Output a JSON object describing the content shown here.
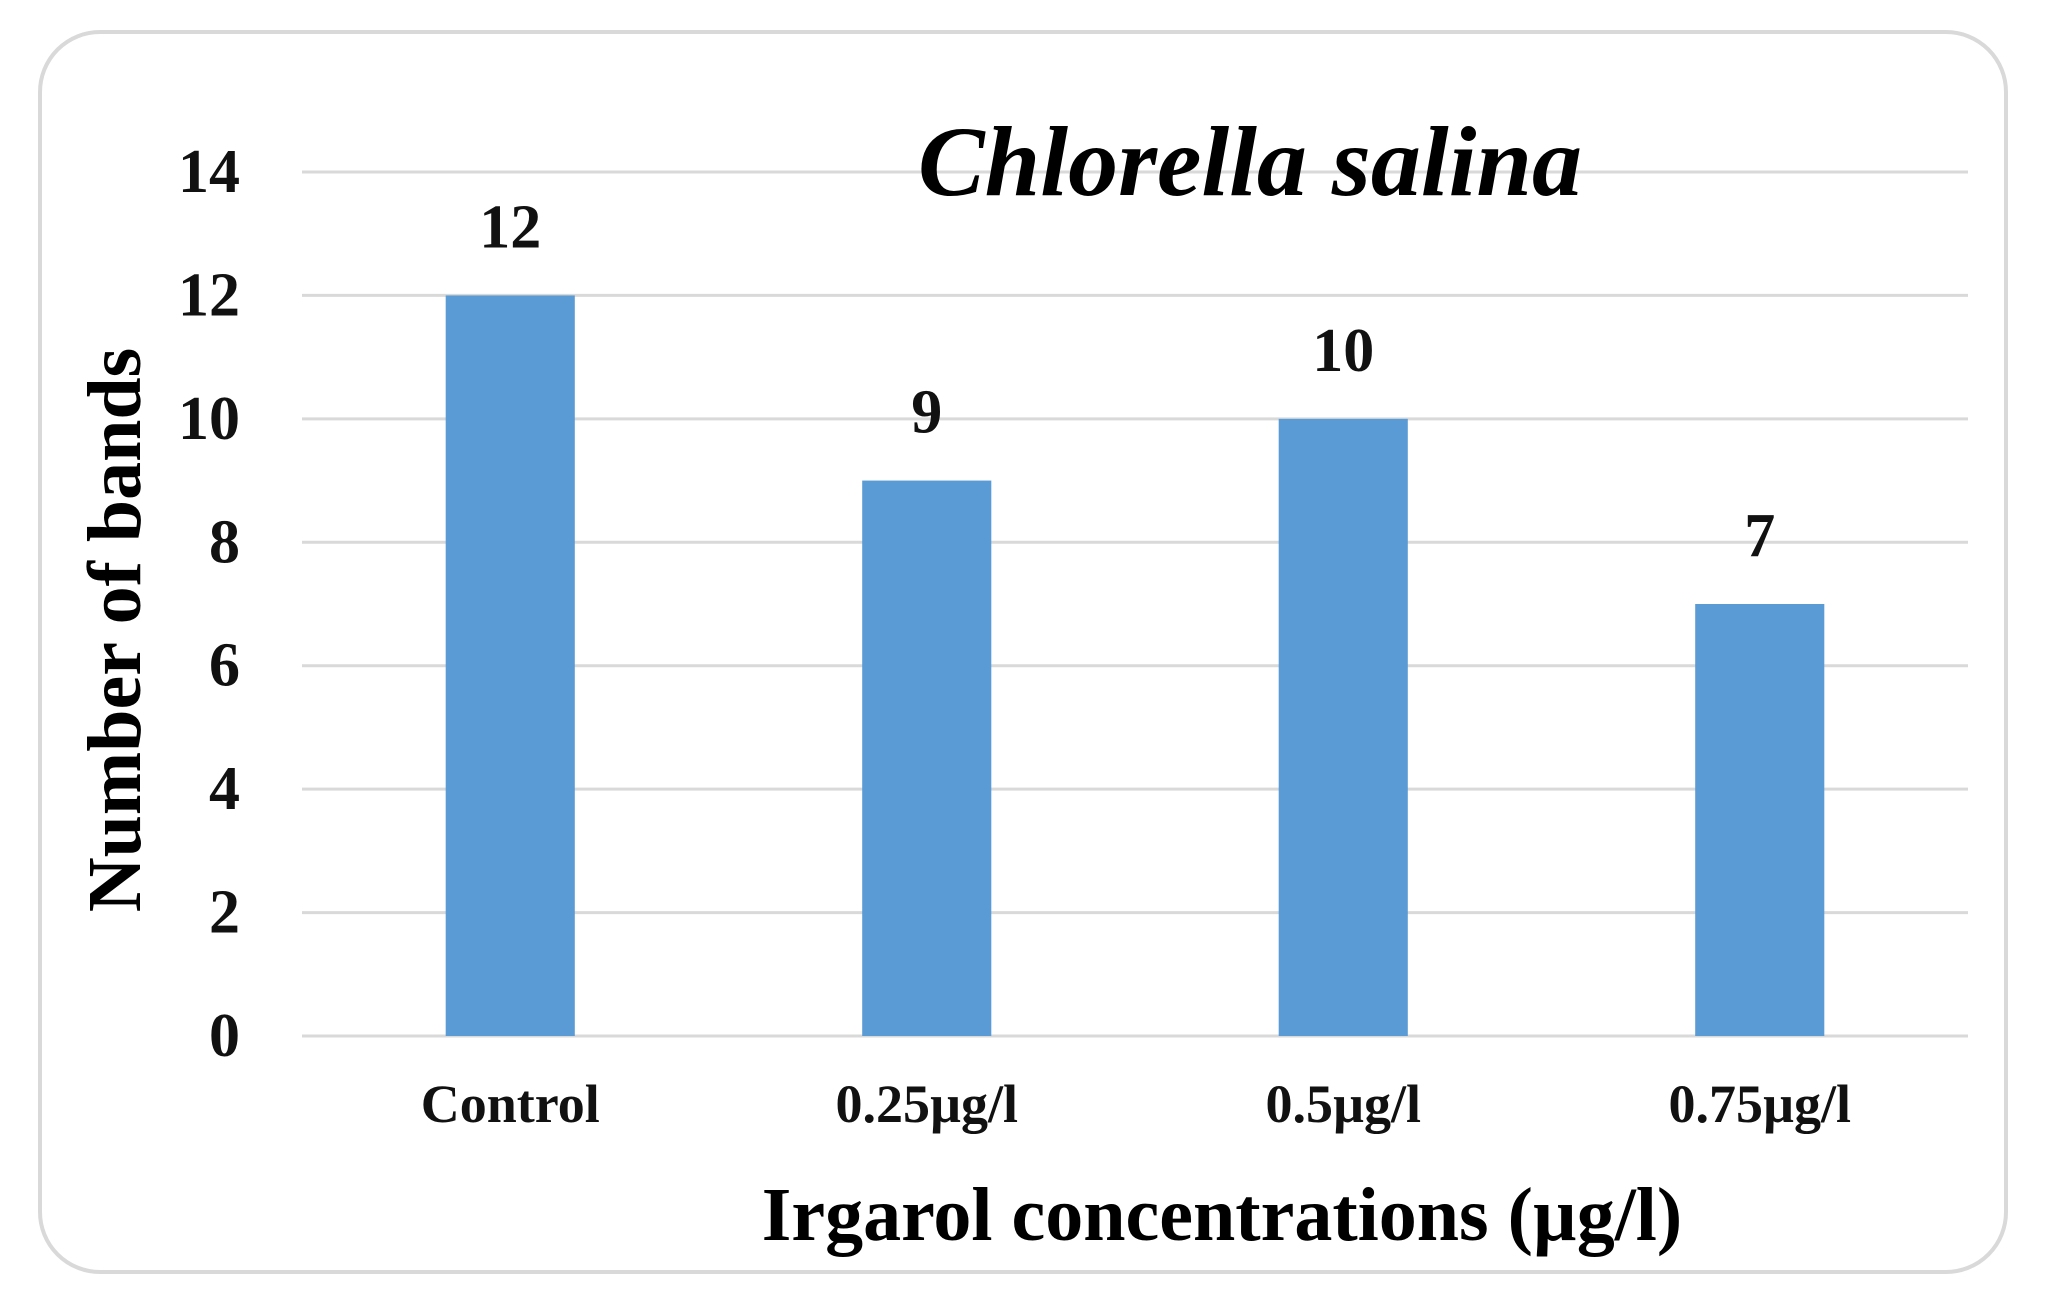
{
  "chart_data": {
    "type": "bar",
    "title": "Chlorella salina",
    "xlabel": "Irgarol concentrations (µg/l)",
    "ylabel": "Number of bands",
    "categories": [
      "Control",
      "0.25µg/l",
      "0.5µg/l",
      "0.75µg/l"
    ],
    "values": [
      12,
      9,
      10,
      7
    ],
    "data_labels": [
      "12",
      "9",
      "10",
      "7"
    ],
    "ylim": [
      0,
      14
    ],
    "yticks": [
      0,
      2,
      4,
      6,
      8,
      10,
      12,
      14
    ],
    "ytick_labels": [
      "0",
      "2",
      "4",
      "6",
      "8",
      "10",
      "12",
      "14"
    ],
    "grid": true,
    "legend": "none",
    "colors": {
      "bar": "#5b9bd5",
      "grid": "#d9d9d9",
      "frame": "#d9d9d9"
    }
  }
}
